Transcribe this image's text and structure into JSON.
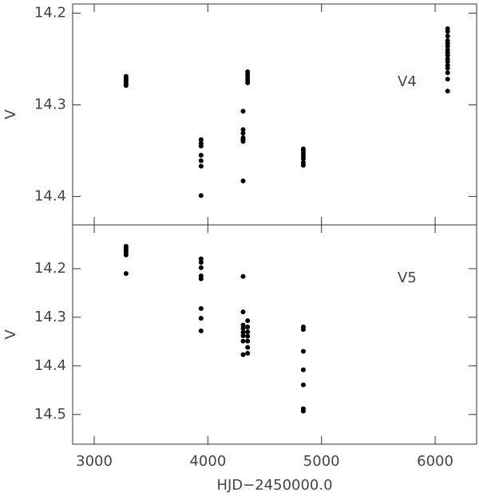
{
  "chart_data": [
    {
      "type": "scatter",
      "ylabel": "V",
      "annotation": "V4",
      "color": "#000000",
      "xlim": [
        2810,
        6365
      ],
      "xticks": [
        3000,
        4000,
        5000,
        6000
      ],
      "ylim": [
        14.431,
        14.19
      ],
      "yticks": [
        14.2,
        14.3,
        14.4
      ],
      "x": [
        3280,
        3280,
        3280,
        3280,
        3280,
        3280,
        3940,
        3940,
        3940,
        3940,
        3940,
        3940,
        3940,
        4310,
        4310,
        4310,
        4310,
        4310,
        4310,
        4310,
        4350,
        4350,
        4350,
        4350,
        4350,
        4840,
        4840,
        4840,
        4840,
        4840,
        4840,
        4840,
        6110,
        6110,
        6110,
        6110,
        6110,
        6110,
        6110,
        6110,
        6110,
        6110,
        6110,
        6110,
        6110,
        6110,
        6110,
        6110
      ],
      "values": [
        14.269,
        14.271,
        14.273,
        14.275,
        14.277,
        14.279,
        14.338,
        14.342,
        14.345,
        14.355,
        14.361,
        14.367,
        14.399,
        14.307,
        14.327,
        14.331,
        14.336,
        14.338,
        14.34,
        14.383,
        14.264,
        14.267,
        14.27,
        14.273,
        14.276,
        14.348,
        14.35,
        14.353,
        14.356,
        14.359,
        14.363,
        14.366,
        14.217,
        14.22,
        14.225,
        14.23,
        14.233,
        14.236,
        14.24,
        14.243,
        14.246,
        14.25,
        14.253,
        14.257,
        14.26,
        14.265,
        14.272,
        14.285
      ]
    },
    {
      "type": "scatter",
      "ylabel": "V",
      "annotation": "V5",
      "xlabel": "HJD−2450000.0",
      "color": "#000000",
      "xlim": [
        2810,
        6365
      ],
      "xticks": [
        3000,
        4000,
        5000,
        6000
      ],
      "ylim": [
        14.561,
        14.11
      ],
      "yticks": [
        14.2,
        14.3,
        14.4,
        14.5
      ],
      "x": [
        3280,
        3280,
        3280,
        3280,
        3280,
        3280,
        3940,
        3940,
        3940,
        3940,
        3940,
        3940,
        3940,
        3940,
        4310,
        4310,
        4310,
        4310,
        4310,
        4310,
        4310,
        4310,
        4350,
        4350,
        4350,
        4350,
        4350,
        4350,
        4350,
        4840,
        4840,
        4840,
        4840,
        4840,
        4840,
        4840
      ],
      "values": [
        14.154,
        14.158,
        14.162,
        14.166,
        14.172,
        14.21,
        14.18,
        14.187,
        14.198,
        14.215,
        14.221,
        14.282,
        14.302,
        14.328,
        14.216,
        14.289,
        14.316,
        14.323,
        14.331,
        14.338,
        14.349,
        14.377,
        14.307,
        14.32,
        14.33,
        14.339,
        14.349,
        14.362,
        14.374,
        14.32,
        14.325,
        14.37,
        14.408,
        14.439,
        14.488,
        14.493
      ]
    }
  ]
}
